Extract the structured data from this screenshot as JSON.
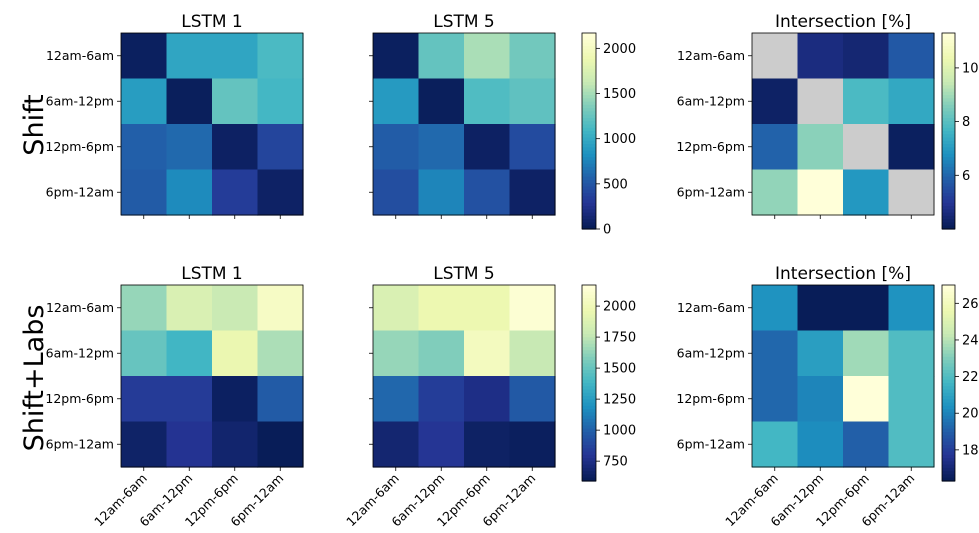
{
  "figure": {
    "row_labels": [
      "Shift",
      "Shift+Labs"
    ]
  },
  "chart_data": [
    {
      "type": "heatmap",
      "title": "LSTM 1",
      "categories": [
        "12am-6am",
        "6am-12pm",
        "12pm-6pm",
        "6pm-12am"
      ],
      "z": [
        [
          30,
          960,
          960,
          1130
        ],
        [
          900,
          20,
          1240,
          1100
        ],
        [
          550,
          600,
          50,
          380
        ],
        [
          520,
          780,
          320,
          60
        ]
      ],
      "zlim": [
        0,
        2170
      ],
      "colorscale": "YlGnBu"
    },
    {
      "type": "heatmap",
      "title": "LSTM 5",
      "categories": [
        "12am-6am",
        "6am-12pm",
        "12pm-6pm",
        "6pm-12am"
      ],
      "z": [
        [
          30,
          1240,
          1520,
          1300
        ],
        [
          880,
          20,
          1150,
          1220
        ],
        [
          530,
          600,
          50,
          420
        ],
        [
          440,
          750,
          460,
          60
        ]
      ],
      "zlim": [
        0,
        2170
      ],
      "colorscale": "YlGnBu",
      "colorbar": {
        "ticks": [
          0,
          500,
          1000,
          1500,
          2000
        ],
        "tick_labels": [
          "0",
          "500",
          "1000",
          "1500",
          "2000"
        ]
      }
    },
    {
      "type": "heatmap",
      "title": "Intersection [%]",
      "categories": [
        "12am-6am",
        "6am-12pm",
        "12pm-6pm",
        "6pm-12am"
      ],
      "z": [
        [
          null,
          4.6,
          4.4,
          5.7
        ],
        [
          4.2,
          null,
          7.8,
          7.3
        ],
        [
          5.9,
          8.7,
          null,
          4.1
        ],
        [
          8.8,
          11.3,
          6.9,
          null
        ]
      ],
      "zlim": [
        4.0,
        11.3
      ],
      "nan_color": "#cccccc",
      "colorscale": "YlGnBu",
      "colorbar": {
        "ticks": [
          6,
          8,
          10
        ],
        "tick_labels": [
          "6",
          "8",
          "10"
        ]
      }
    },
    {
      "type": "heatmap",
      "title": "LSTM 1",
      "categories": [
        "12am-6am",
        "6am-12pm",
        "12pm-6pm",
        "6pm-12am"
      ],
      "z": [
        [
          1640,
          1870,
          1790,
          2070
        ],
        [
          1500,
          1380,
          1960,
          1700
        ],
        [
          820,
          820,
          620,
          970
        ],
        [
          640,
          780,
          660,
          590
        ]
      ],
      "zlim": [
        590,
        2170
      ],
      "colorscale": "YlGnBu"
    },
    {
      "type": "heatmap",
      "title": "LSTM 5",
      "categories": [
        "12am-6am",
        "6am-12pm",
        "12pm-6pm",
        "6pm-12am"
      ],
      "z": [
        [
          1870,
          1970,
          1970,
          2140
        ],
        [
          1640,
          1580,
          2040,
          1780
        ],
        [
          1020,
          830,
          740,
          960
        ],
        [
          670,
          790,
          630,
          610
        ]
      ],
      "zlim": [
        590,
        2170
      ],
      "colorscale": "YlGnBu",
      "colorbar": {
        "ticks": [
          750,
          1000,
          1250,
          1500,
          1750,
          2000
        ],
        "tick_labels": [
          "750",
          "1000",
          "1250",
          "1500",
          "1750",
          "2000"
        ]
      }
    },
    {
      "type": "heatmap",
      "title": "Intersection [%]",
      "categories": [
        "12am-6am",
        "6am-12pm",
        "12pm-6pm",
        "6pm-12am"
      ],
      "z": [
        [
          20.4,
          16.3,
          16.3,
          20.4
        ],
        [
          19.2,
          20.8,
          23.6,
          22.0
        ],
        [
          19.2,
          20.0,
          27.0,
          22.0
        ],
        [
          21.7,
          20.2,
          19.0,
          22.0
        ]
      ],
      "zlim": [
        16.3,
        27.0
      ],
      "colorscale": "YlGnBu",
      "colorbar": {
        "ticks": [
          18,
          20,
          22,
          24,
          26
        ],
        "tick_labels": [
          "18",
          "20",
          "22",
          "24",
          "26"
        ]
      }
    }
  ]
}
